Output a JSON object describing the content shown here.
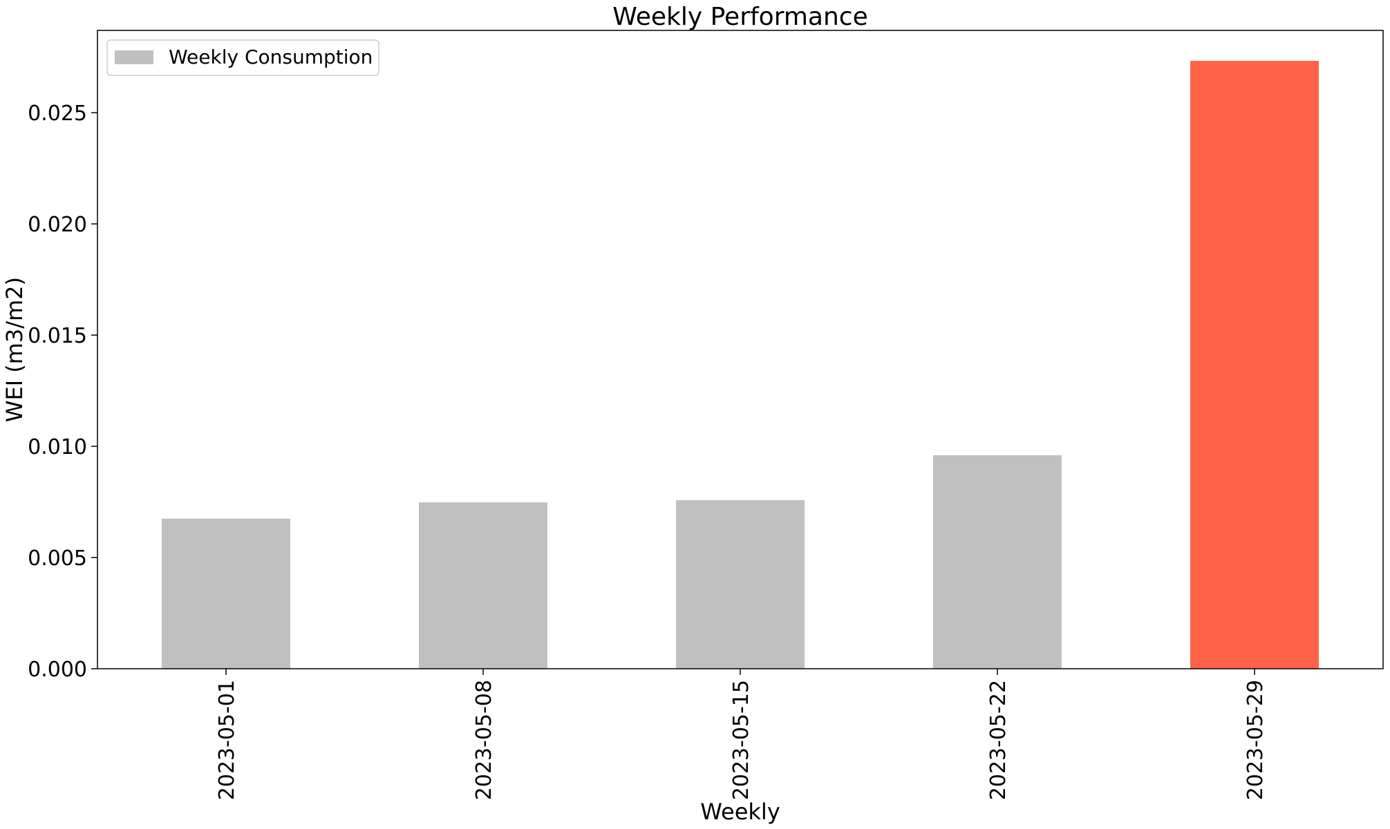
{
  "chart_data": {
    "type": "bar",
    "title": "Weekly Performance",
    "xlabel": "Weekly",
    "ylabel": "WEI (m3/m2)",
    "categories": [
      "2023-05-01",
      "2023-05-08",
      "2023-05-15",
      "2023-05-22",
      "2023-05-29"
    ],
    "series": [
      {
        "name": "Weekly Consumption",
        "values": [
          0.00675,
          0.00748,
          0.00758,
          0.0096,
          0.02733
        ],
        "color": "#c0c0c0"
      }
    ],
    "bar_colors": [
      "#c0c0c0",
      "#c0c0c0",
      "#c0c0c0",
      "#c0c0c0",
      "#ff6347"
    ],
    "ylim": [
      0,
      0.0287
    ],
    "yticks": [
      "0.000",
      "0.005",
      "0.010",
      "0.015",
      "0.020",
      "0.025"
    ],
    "ytick_values": [
      0,
      0.005,
      0.01,
      0.015,
      0.02,
      0.025
    ],
    "grid": false,
    "legend": "top-left"
  }
}
